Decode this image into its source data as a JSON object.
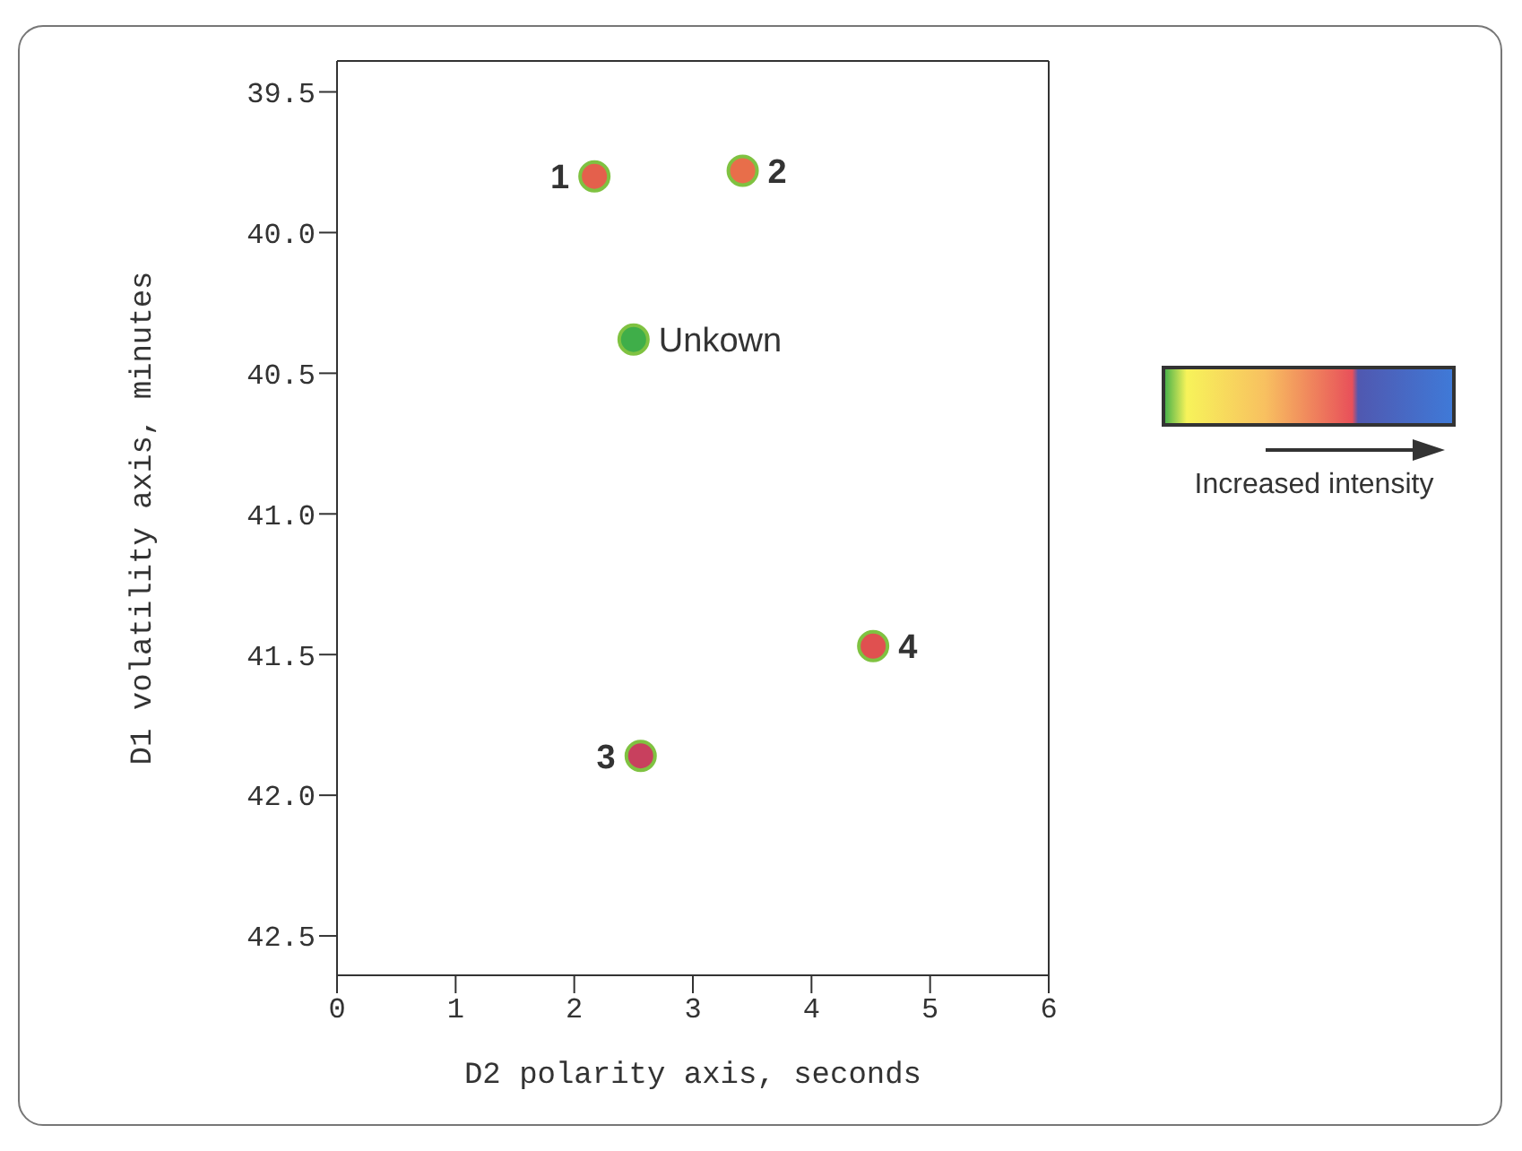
{
  "chart_data": {
    "type": "scatter",
    "xlabel": "D2 polarity axis, seconds",
    "ylabel": "D1 volatility axis, minutes",
    "x": [
      2.17,
      3.42,
      2.5,
      2.56,
      4.52
    ],
    "values": [
      39.8,
      39.78,
      40.38,
      41.86,
      41.47
    ],
    "colors": [
      "#e4604c",
      "#e86e4a",
      "#3fae49",
      "#c8405e",
      "#e05050"
    ],
    "marker": "circle",
    "xlim": [
      0,
      6
    ],
    "xticks": [
      0,
      1,
      2,
      3,
      4,
      5,
      6
    ],
    "ylim": [
      42.64,
      39.39
    ],
    "yticks": [
      {
        "value": 39.5,
        "label": "39.5"
      },
      {
        "value": 40,
        "label": "40.0"
      },
      {
        "value": 40.5,
        "label": "40.5"
      },
      {
        "value": 41,
        "label": "41.0"
      },
      {
        "value": 41.5,
        "label": "41.5"
      },
      {
        "value": 42,
        "label": "42.0"
      },
      {
        "value": 42.5,
        "label": "42.5"
      }
    ],
    "annotations": [
      {
        "text": "1",
        "x": 2.17,
        "y": 39.8
      },
      {
        "text": "2",
        "x": 3.42,
        "y": 39.78
      },
      {
        "text": "Unkown",
        "x": 2.5,
        "y": 40.38
      },
      {
        "text": "3",
        "x": 2.56,
        "y": 41.86
      },
      {
        "text": "4",
        "x": 4.52,
        "y": 41.47
      },
      "Increased intensity"
    ]
  }
}
